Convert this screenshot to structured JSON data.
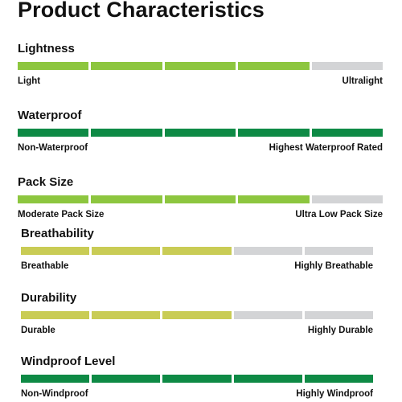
{
  "title": "Product Characteristics",
  "colors": {
    "light_green": "#8dc63f",
    "dark_green": "#0e8a45",
    "olive_yellow": "#c9cc55",
    "empty_gray": "#d3d4d6"
  },
  "characteristics": [
    {
      "name": "Lightness",
      "min_label": "Light",
      "max_label": "Ultralight",
      "rating": 4,
      "segments": 5,
      "fill_color": "#8dc63f"
    },
    {
      "name": "Waterproof",
      "min_label": "Non-Waterproof",
      "max_label": "Highest Waterproof Rated",
      "rating": 5,
      "segments": 5,
      "fill_color": "#0e8a45"
    },
    {
      "name": "Pack Size",
      "min_label": "Moderate Pack Size",
      "max_label": "Ultra Low Pack Size",
      "rating": 4,
      "segments": 5,
      "fill_color": "#8dc63f"
    },
    {
      "name": "Breathability",
      "min_label": "Breathable",
      "max_label": "Highly Breathable",
      "rating": 3,
      "segments": 5,
      "fill_color": "#c9cc55"
    },
    {
      "name": "Durability",
      "min_label": "Durable",
      "max_label": "Highly Durable",
      "rating": 3,
      "segments": 5,
      "fill_color": "#c9cc55"
    },
    {
      "name": "Windproof Level",
      "min_label": "Non-Windproof",
      "max_label": "Highly Windproof",
      "rating": 5,
      "segments": 5,
      "fill_color": "#0e8a45"
    }
  ]
}
